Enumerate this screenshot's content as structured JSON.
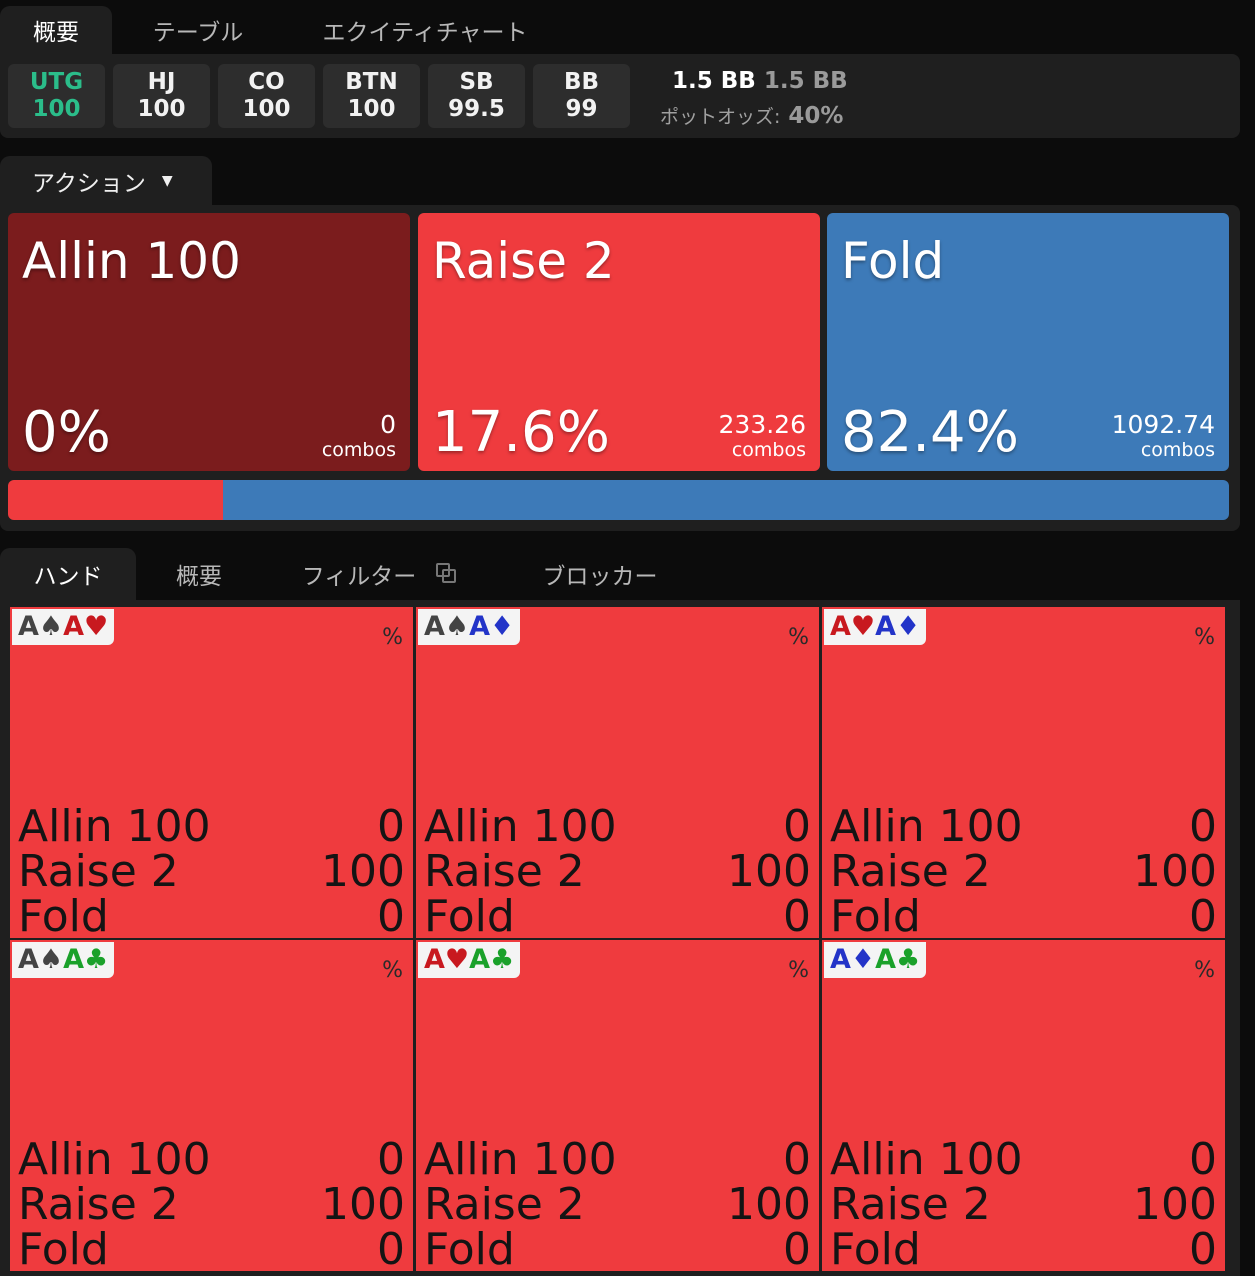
{
  "top_tabs": [
    "概要",
    "テーブル",
    "エクイティチャート"
  ],
  "positions": [
    {
      "name": "UTG",
      "stack": "100"
    },
    {
      "name": "HJ",
      "stack": "100"
    },
    {
      "name": "CO",
      "stack": "100"
    },
    {
      "name": "BTN",
      "stack": "100"
    },
    {
      "name": "SB",
      "stack": "99.5"
    },
    {
      "name": "BB",
      "stack": "99"
    }
  ],
  "pot": {
    "value": "1.5 BB",
    "value2": "1.5 BB",
    "odds_label": "ポットオッズ:",
    "odds_value": "40%"
  },
  "action_tab": {
    "label": "アクション",
    "caret": "▼"
  },
  "actions": [
    {
      "name": "Allin 100",
      "pct": "0%",
      "combos": "0",
      "combos_label": "combos",
      "color": "#7b1c1d"
    },
    {
      "name": "Raise 2",
      "pct": "17.6%",
      "combos": "233.26",
      "combos_label": "combos",
      "color": "#ef3b3e"
    },
    {
      "name": "Fold",
      "pct": "82.4%",
      "combos": "1092.74",
      "combos_label": "combos",
      "color": "#3d7ab8"
    }
  ],
  "distribution": [
    {
      "action": "Allin 100",
      "fraction": 0.0,
      "color": "#7b1c1d"
    },
    {
      "action": "Raise 2",
      "fraction": 0.176,
      "color": "#ef3b3e"
    },
    {
      "action": "Fold",
      "fraction": 0.824,
      "color": "#3d7ab8"
    }
  ],
  "hand_tabs": [
    "ハンド",
    "概要",
    "フィルター",
    "ブロッカー"
  ],
  "hands": [
    {
      "c1": {
        "rank": "A",
        "suit": "♠",
        "cls": "s-spade"
      },
      "c2": {
        "rank": "A",
        "suit": "♥",
        "cls": "s-heart"
      },
      "pct": "%",
      "rows": [
        {
          "label": "Allin 100",
          "value": "0"
        },
        {
          "label": "Raise 2",
          "value": "100"
        },
        {
          "label": "Fold",
          "value": "0"
        }
      ]
    },
    {
      "c1": {
        "rank": "A",
        "suit": "♠",
        "cls": "s-spade"
      },
      "c2": {
        "rank": "A",
        "suit": "♦",
        "cls": "s-diamond"
      },
      "pct": "%",
      "rows": [
        {
          "label": "Allin 100",
          "value": "0"
        },
        {
          "label": "Raise 2",
          "value": "100"
        },
        {
          "label": "Fold",
          "value": "0"
        }
      ]
    },
    {
      "c1": {
        "rank": "A",
        "suit": "♥",
        "cls": "s-heart"
      },
      "c2": {
        "rank": "A",
        "suit": "♦",
        "cls": "s-diamond"
      },
      "pct": "%",
      "rows": [
        {
          "label": "Allin 100",
          "value": "0"
        },
        {
          "label": "Raise 2",
          "value": "100"
        },
        {
          "label": "Fold",
          "value": "0"
        }
      ]
    },
    {
      "c1": {
        "rank": "A",
        "suit": "♠",
        "cls": "s-spade"
      },
      "c2": {
        "rank": "A",
        "suit": "♣",
        "cls": "s-club"
      },
      "pct": "%",
      "rows": [
        {
          "label": "Allin 100",
          "value": "0"
        },
        {
          "label": "Raise 2",
          "value": "100"
        },
        {
          "label": "Fold",
          "value": "0"
        }
      ]
    },
    {
      "c1": {
        "rank": "A",
        "suit": "♥",
        "cls": "s-heart"
      },
      "c2": {
        "rank": "A",
        "suit": "♣",
        "cls": "s-club"
      },
      "pct": "%",
      "rows": [
        {
          "label": "Allin 100",
          "value": "0"
        },
        {
          "label": "Raise 2",
          "value": "100"
        },
        {
          "label": "Fold",
          "value": "0"
        }
      ]
    },
    {
      "c1": {
        "rank": "A",
        "suit": "♦",
        "cls": "s-diamond"
      },
      "c2": {
        "rank": "A",
        "suit": "♣",
        "cls": "s-club"
      },
      "pct": "%",
      "rows": [
        {
          "label": "Allin 100",
          "value": "0"
        },
        {
          "label": "Raise 2",
          "value": "100"
        },
        {
          "label": "Fold",
          "value": "0"
        }
      ]
    }
  ]
}
